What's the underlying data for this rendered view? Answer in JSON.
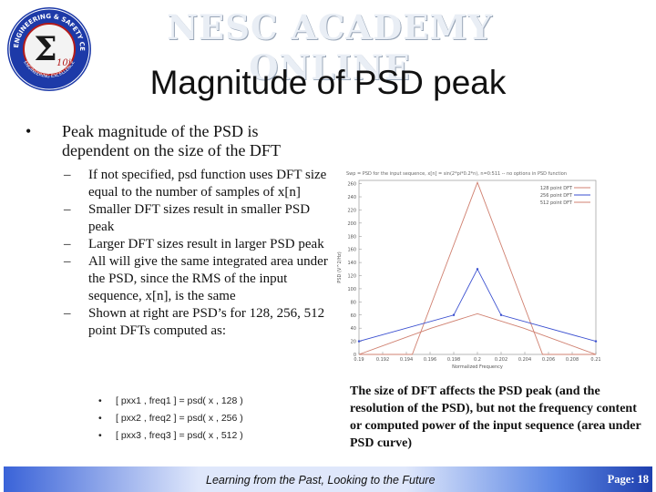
{
  "header": {
    "banner": "NESC ACADEMY ONLINE",
    "title": "Magnitude of PSD peak",
    "logo": {
      "ring_text": "NASA ENGINEERING & SAFETY CENTER",
      "bottom_text": "ENGINEERING EXCELLENCE",
      "symbol": "Σ",
      "symbol_sub": "10i"
    }
  },
  "main": {
    "bullet": {
      "line1": "Peak magnitude of the PSD is",
      "line2": "dependent on the size of the DFT"
    },
    "sub_bullets": [
      "If not specified, psd function uses DFT size equal to the number of samples of x[n]",
      "Smaller DFT sizes result in smaller PSD peak",
      "Larger DFT sizes result in larger PSD peak",
      "All will give the same integrated area under the PSD, since the RMS of the input sequence, x[n], is the same",
      "Shown at right are PSD’s for 128, 256, 512 point DFTs computed as:"
    ],
    "code_lines": [
      "[ pxx1 , freq1 ] = psd( x , 128 )",
      "[ pxx2 , freq2 ] = psd( x , 256 )",
      "[ pxx3 , freq3 ] = psd( x , 512 )"
    ],
    "caption": "The size of DFT affects the PSD peak (and the resolution of the PSD), but not the frequency content or computed power of the input sequence (area under PSD curve)"
  },
  "chart_data": {
    "type": "line",
    "title": "Swp = PSD for the input sequence, x[n] = sin(2*pi*0.2*n), n=0:511 -- no options in PSD function",
    "xlabel": "Normalized Frequency",
    "ylabel": "PSD (V^2/Hz)",
    "x_ticks": [
      "0.19",
      "0.192",
      "0.194",
      "0.196",
      "0.198",
      "0.2",
      "0.202",
      "0.204",
      "0.206",
      "0.208",
      "0.21"
    ],
    "y_ticks": [
      "0",
      "20",
      "40",
      "60",
      "80",
      "100",
      "120",
      "140",
      "160",
      "180",
      "200",
      "220",
      "240",
      "260"
    ],
    "xlim": [
      0.19,
      0.21
    ],
    "ylim": [
      0,
      265
    ],
    "legend_position": "top-right",
    "series": [
      {
        "name": "128 point DFT",
        "color": "#d08070",
        "x": [
          0.19,
          0.1945,
          0.2,
          0.2055,
          0.21
        ],
        "y": [
          0,
          0,
          262,
          0,
          0
        ]
      },
      {
        "name": "256 point DFT",
        "color": "#3a4fd0",
        "x": [
          0.19,
          0.198,
          0.2,
          0.202,
          0.21
        ],
        "y": [
          20,
          60,
          130,
          60,
          20
        ]
      },
      {
        "name": "512 point DFT",
        "color": "#d08070",
        "x": [
          0.19,
          0.1961,
          0.2,
          0.2039,
          0.21
        ],
        "y": [
          0,
          40,
          62,
          40,
          0
        ]
      }
    ]
  },
  "footer": {
    "text": "Learning from the Past, Looking to the Future",
    "page_label": "Page:",
    "page_number": "18"
  }
}
